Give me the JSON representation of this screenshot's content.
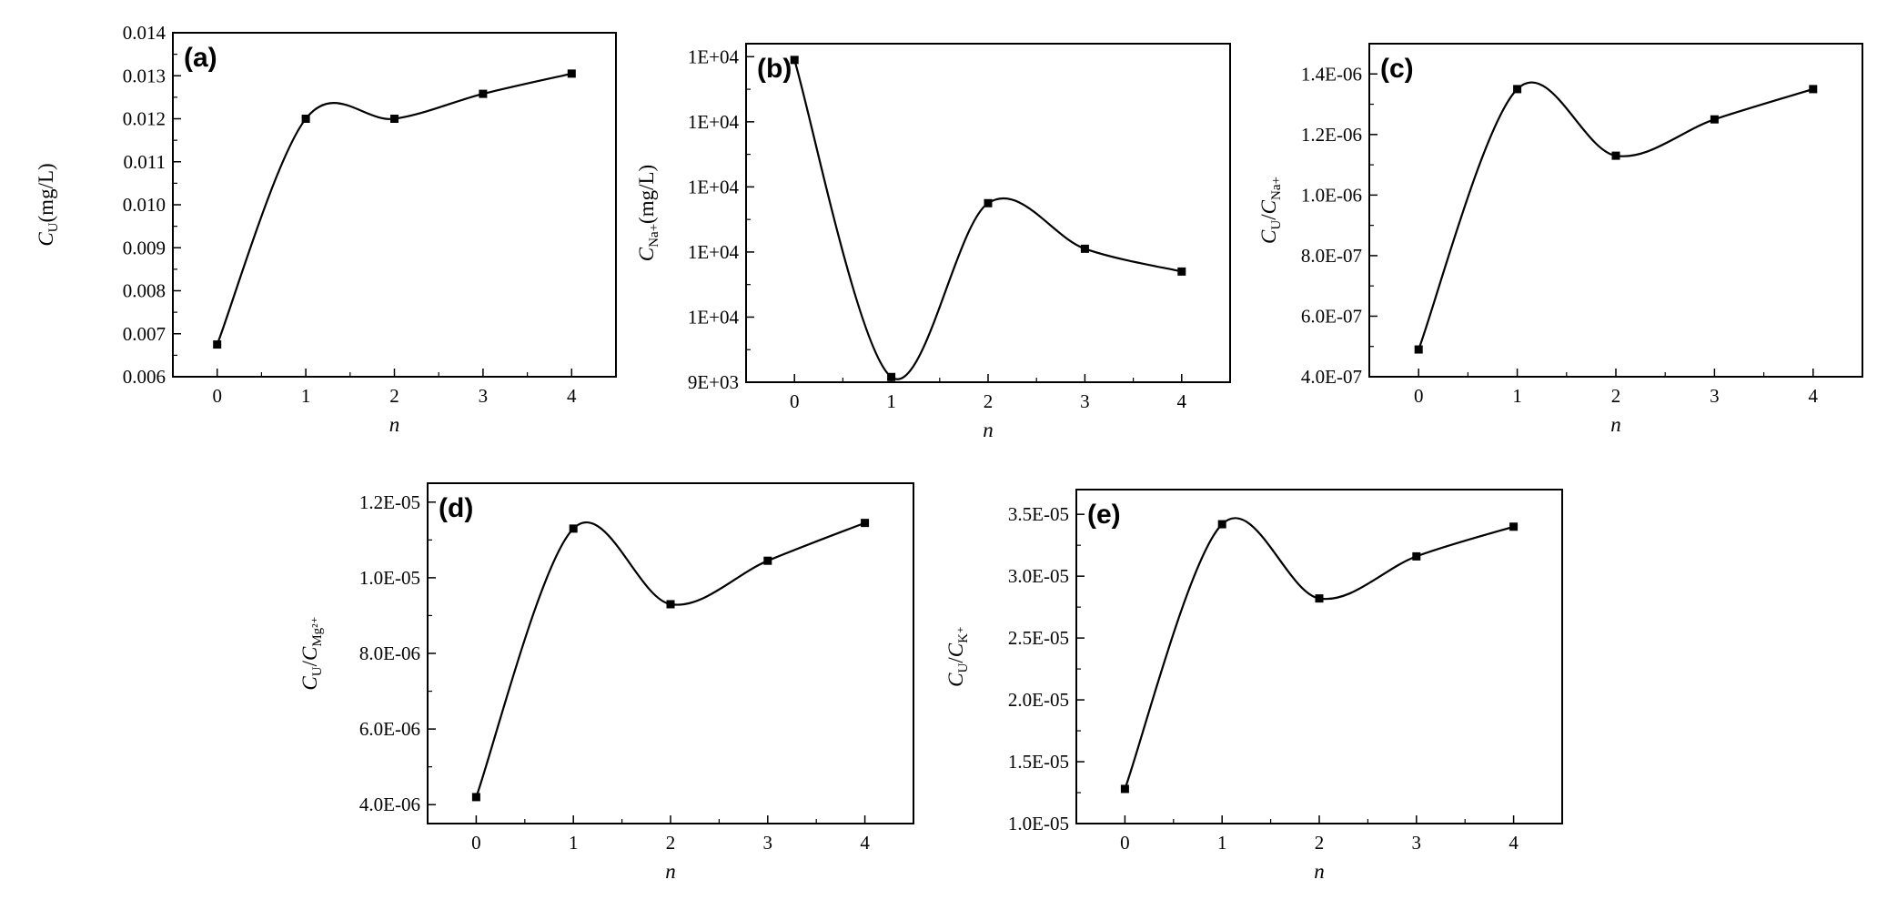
{
  "chart_data": [
    {
      "type": "line",
      "panel_label": "(a)",
      "xlabel": "n",
      "ylabel_main": "C",
      "ylabel_sub": "U",
      "ylabel_suffix": "(mg/L)",
      "x": [
        0,
        1,
        2,
        3,
        4
      ],
      "series": [
        {
          "values": [
            0.00675,
            0.012,
            0.012,
            0.01258,
            0.01305
          ]
        }
      ],
      "xlim": [
        -0.5,
        4.5
      ],
      "ylim": [
        0.006,
        0.014
      ],
      "xticks": [
        "0",
        "1",
        "2",
        "3",
        "4"
      ],
      "yticks": [
        {
          "value": 0.006,
          "label": "0.006"
        },
        {
          "value": 0.007,
          "label": "0.007"
        },
        {
          "value": 0.008,
          "label": "0.008"
        },
        {
          "value": 0.009,
          "label": "0.009"
        },
        {
          "value": 0.01,
          "label": "0.010"
        },
        {
          "value": 0.011,
          "label": "0.011"
        },
        {
          "value": 0.012,
          "label": "0.012"
        },
        {
          "value": 0.013,
          "label": "0.013"
        },
        {
          "value": 0.014,
          "label": "0.014"
        }
      ],
      "curve": "smooth",
      "marker": "square",
      "color": "#000000"
    },
    {
      "type": "line",
      "panel_label": "(b)",
      "xlabel": "n",
      "ylabel_main": "C",
      "ylabel_sub": "Na+",
      "ylabel_suffix": "(mg/L)",
      "x": [
        0,
        1,
        2,
        3,
        4
      ],
      "series": [
        {
          "values": [
            4.95,
            0.08,
            2.75,
            2.05,
            1.7
          ]
        }
      ],
      "xlim": [
        -0.5,
        4.5
      ],
      "ylim": [
        0,
        5.2
      ],
      "xticks": [
        "0",
        "1",
        "2",
        "3",
        "4"
      ],
      "yticks": [
        {
          "value": 0.0,
          "label": "9E+03"
        },
        {
          "value": 1.0,
          "label": "1E+04"
        },
        {
          "value": 2.0,
          "label": "1E+04"
        },
        {
          "value": 3.0,
          "label": "1E+04"
        },
        {
          "value": 4.0,
          "label": "1E+04"
        },
        {
          "value": 5.0,
          "label": "1E+04"
        }
      ],
      "curve": "smooth",
      "marker": "square",
      "color": "#000000"
    },
    {
      "type": "line",
      "panel_label": "(c)",
      "xlabel": "n",
      "ylabel_main": "C",
      "ylabel_sub": "U",
      "ylabel_main2": "C",
      "ylabel_sub2": "Na+",
      "ylabel_suffix": "",
      "x": [
        0,
        1,
        2,
        3,
        4
      ],
      "series": [
        {
          "values": [
            4.9e-07,
            1.35e-06,
            1.13e-06,
            1.25e-06,
            1.35e-06
          ]
        }
      ],
      "xlim": [
        -0.5,
        4.5
      ],
      "ylim": [
        4e-07,
        1.5e-06
      ],
      "xticks": [
        "0",
        "1",
        "2",
        "3",
        "4"
      ],
      "yticks": [
        {
          "value": 4e-07,
          "label": "4.0E-07"
        },
        {
          "value": 6e-07,
          "label": "6.0E-07"
        },
        {
          "value": 8e-07,
          "label": "8.0E-07"
        },
        {
          "value": 1e-06,
          "label": "1.0E-06"
        },
        {
          "value": 1.2e-06,
          "label": "1.2E-06"
        },
        {
          "value": 1.4e-06,
          "label": "1.4E-06"
        }
      ],
      "curve": "smooth",
      "marker": "square",
      "color": "#000000"
    },
    {
      "type": "line",
      "panel_label": "(d)",
      "xlabel": "n",
      "ylabel_main": "C",
      "ylabel_sub": "U",
      "ylabel_main2": "C",
      "ylabel_sub2": "Mg²⁺",
      "ylabel_suffix": "",
      "x": [
        0,
        1,
        2,
        3,
        4
      ],
      "series": [
        {
          "values": [
            4.2e-06,
            1.13e-05,
            9.3e-06,
            1.045e-05,
            1.145e-05
          ]
        }
      ],
      "xlim": [
        -0.5,
        4.5
      ],
      "ylim": [
        3.5e-06,
        1.25e-05
      ],
      "xticks": [
        "0",
        "1",
        "2",
        "3",
        "4"
      ],
      "yticks": [
        {
          "value": 4e-06,
          "label": "4.0E-06"
        },
        {
          "value": 6e-06,
          "label": "6.0E-06"
        },
        {
          "value": 8e-06,
          "label": "8.0E-06"
        },
        {
          "value": 1e-05,
          "label": "1.0E-05"
        },
        {
          "value": 1.2e-05,
          "label": "1.2E-05"
        }
      ],
      "curve": "smooth",
      "marker": "square",
      "color": "#000000"
    },
    {
      "type": "line",
      "panel_label": "(e)",
      "xlabel": "n",
      "ylabel_main": "C",
      "ylabel_sub": "U",
      "ylabel_main2": "C",
      "ylabel_sub2": "K⁺",
      "ylabel_suffix": "",
      "x": [
        0,
        1,
        2,
        3,
        4
      ],
      "series": [
        {
          "values": [
            1.28e-05,
            3.42e-05,
            2.82e-05,
            3.16e-05,
            3.4e-05
          ]
        }
      ],
      "xlim": [
        -0.5,
        4.5
      ],
      "ylim": [
        1e-05,
        3.7e-05
      ],
      "xticks": [
        "0",
        "1",
        "2",
        "3",
        "4"
      ],
      "yticks": [
        {
          "value": 1e-05,
          "label": "1.0E-05"
        },
        {
          "value": 1.5e-05,
          "label": "1.5E-05"
        },
        {
          "value": 2e-05,
          "label": "2.0E-05"
        },
        {
          "value": 2.5e-05,
          "label": "2.5E-05"
        },
        {
          "value": 3e-05,
          "label": "3.0E-05"
        },
        {
          "value": 3.5e-05,
          "label": "3.5E-05"
        }
      ],
      "curve": "smooth",
      "marker": "square",
      "color": "#000000"
    }
  ]
}
